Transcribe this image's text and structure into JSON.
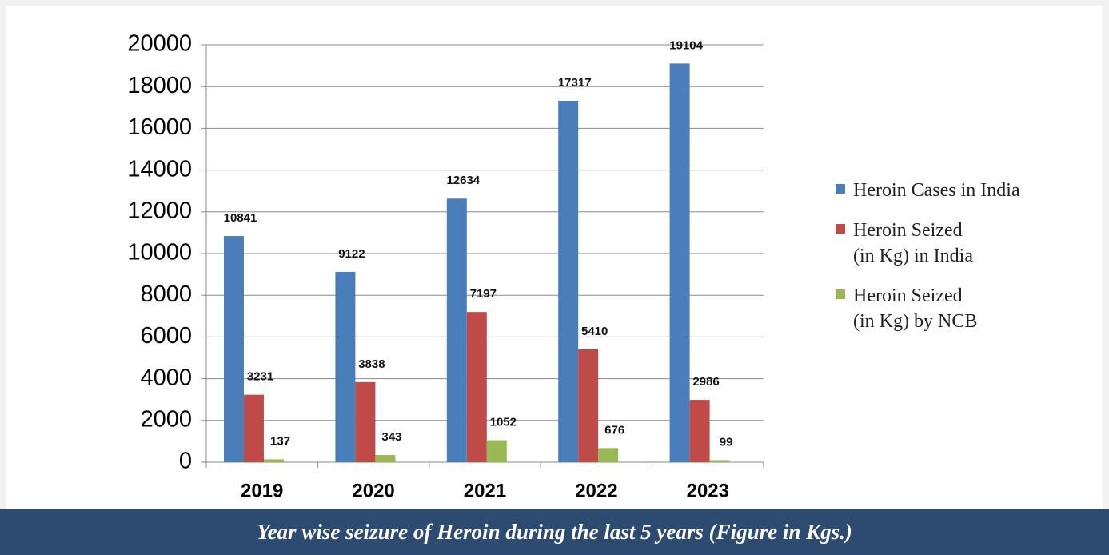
{
  "chart_data": {
    "type": "bar",
    "title": "Year wise seizure of Heroin during the last 5 years (Figure in Kgs.)",
    "categories": [
      "2019",
      "2020",
      "2021",
      "2022",
      "2023"
    ],
    "series": [
      {
        "name": "Heroin Cases in India",
        "color": "#4a7ebb",
        "values": [
          10841,
          9122,
          12634,
          17317,
          19104
        ]
      },
      {
        "name": "Heroin Seized\n(in  Kg) in India",
        "color": "#be4b48",
        "values": [
          3231,
          3838,
          7197,
          5410,
          2986
        ]
      },
      {
        "name": "Heroin Seized\n(in  Kg) by  NCB",
        "color": "#98b954",
        "values": [
          137,
          343,
          1052,
          676,
          99
        ]
      }
    ],
    "ylim": [
      0,
      20000
    ],
    "yticks": [
      0,
      2000,
      4000,
      6000,
      8000,
      10000,
      12000,
      14000,
      16000,
      18000,
      20000
    ],
    "grid": true,
    "legend": "right"
  }
}
